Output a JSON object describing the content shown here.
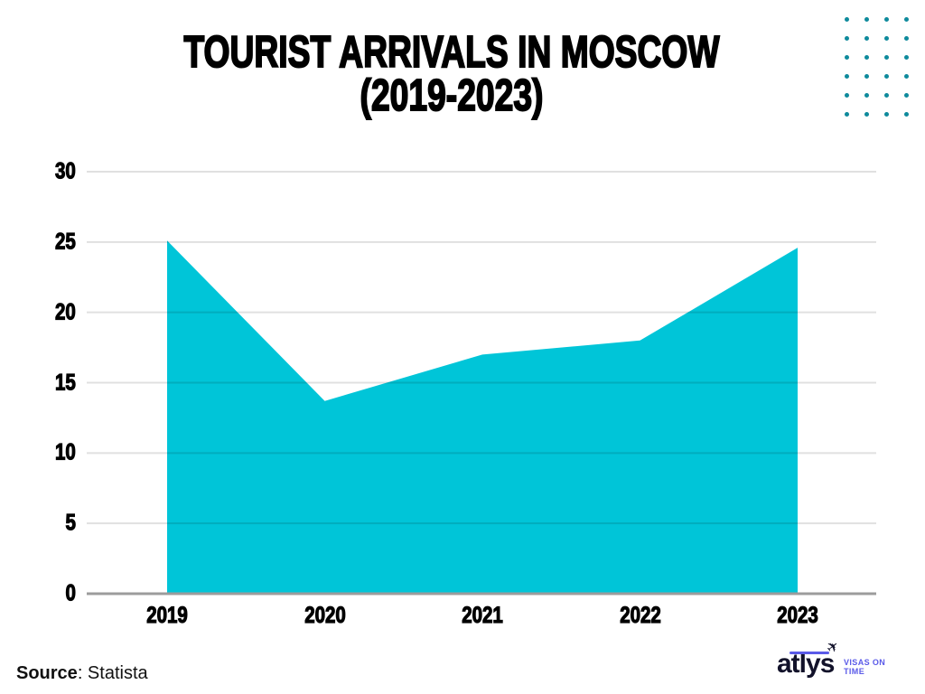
{
  "title": {
    "line1": "TOURIST ARRIVALS IN MOSCOW",
    "line2": "(2019-2023)"
  },
  "chart_data": {
    "type": "area",
    "categories": [
      "2019",
      "2020",
      "2021",
      "2022",
      "2023"
    ],
    "values": [
      25.1,
      13.7,
      17,
      18,
      24.6
    ],
    "title": "Tourist Arrivals in Moscow (2019-2023)",
    "xlabel": "",
    "ylabel": "",
    "ylim": [
      0,
      30
    ],
    "yticks": [
      0,
      5,
      10,
      15,
      20,
      25,
      30
    ],
    "grid": true,
    "legend": "none",
    "fill_color": "#00C5D8"
  },
  "colors": {
    "area_fill": "#00C5D8",
    "gridline_overlay": "rgba(0,0,0,0.12)",
    "baseline": "#9C9C9C",
    "dot": "#0E8A9C",
    "logo_accent": "#5A5AE8",
    "logo_text": "#12122A"
  },
  "decor": {
    "dot_grid": {
      "rows": 6,
      "cols": 4
    }
  },
  "source": {
    "label": "Source",
    "value": ": Statista"
  },
  "logo": {
    "brand": "atlys",
    "tagline_line1": "VISAS ON",
    "tagline_line2": "TIME"
  }
}
